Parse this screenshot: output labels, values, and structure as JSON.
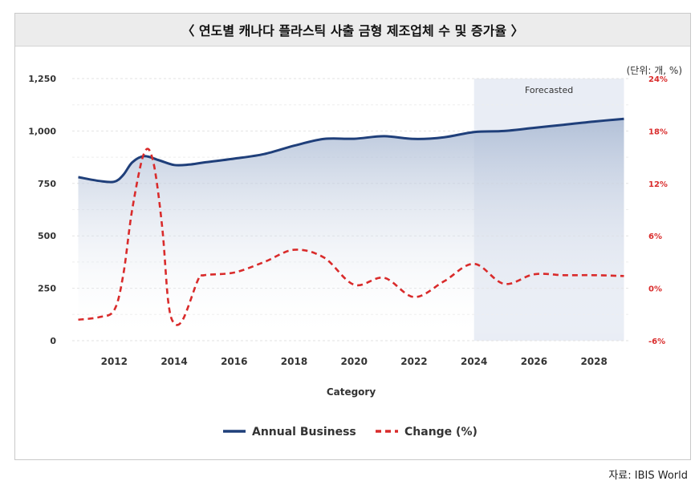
{
  "title": "〈 연도별 캐나다 플라스틱 사출 금형 제조업체 수 및 증가율 〉",
  "unit_note": "(단위: 개, %)",
  "source": "자료: IBIS World",
  "chart_data": {
    "type": "line",
    "xlabel": "Category",
    "forecast_label": "Forecasted",
    "forecast_range": [
      2024,
      2029
    ],
    "x_ticks": [
      2012,
      2014,
      2016,
      2018,
      2020,
      2022,
      2024,
      2026,
      2028
    ],
    "xlim": [
      2010.6,
      2029.2
    ],
    "y_left": {
      "lim": [
        0,
        1250
      ],
      "ticks": [
        0,
        250,
        500,
        750,
        1000,
        1250
      ],
      "tick_labels": [
        "0",
        "250",
        "500",
        "750",
        "1,000",
        "1,250"
      ]
    },
    "y_right": {
      "lim": [
        -6,
        24
      ],
      "ticks": [
        -6,
        0,
        6,
        12,
        18,
        24
      ],
      "tick_labels": [
        "-6%",
        "0%",
        "6%",
        "12%",
        "18%",
        "24%"
      ]
    },
    "grid": true,
    "legend_position": "bottom",
    "series": [
      {
        "name": "Annual Business",
        "axis": "left",
        "color": "#1f3f7a",
        "style": "solid-area",
        "points": [
          [
            2010.8,
            780
          ],
          [
            2011.5,
            762
          ],
          [
            2012.0,
            758
          ],
          [
            2012.3,
            790
          ],
          [
            2012.6,
            850
          ],
          [
            2013.0,
            880
          ],
          [
            2013.5,
            860
          ],
          [
            2014.0,
            838
          ],
          [
            2014.5,
            840
          ],
          [
            2015.0,
            850
          ],
          [
            2016.0,
            868
          ],
          [
            2017.0,
            890
          ],
          [
            2018.0,
            930
          ],
          [
            2019.0,
            962
          ],
          [
            2020.0,
            963
          ],
          [
            2021.0,
            975
          ],
          [
            2022.0,
            962
          ],
          [
            2023.0,
            970
          ],
          [
            2024.0,
            995
          ],
          [
            2025.0,
            1000
          ],
          [
            2026.0,
            1015
          ],
          [
            2027.0,
            1030
          ],
          [
            2028.0,
            1045
          ],
          [
            2029.0,
            1058
          ]
        ]
      },
      {
        "name": "Change (%)",
        "axis": "right",
        "color": "#d92b2b",
        "style": "dashed",
        "points": [
          [
            2010.8,
            -3.6
          ],
          [
            2011.5,
            -3.3
          ],
          [
            2012.0,
            -2.5
          ],
          [
            2012.3,
            1.5
          ],
          [
            2012.6,
            9.0
          ],
          [
            2013.0,
            15.5
          ],
          [
            2013.3,
            14.5
          ],
          [
            2013.6,
            7.0
          ],
          [
            2013.8,
            -1.5
          ],
          [
            2014.0,
            -4.0
          ],
          [
            2014.3,
            -3.5
          ],
          [
            2014.8,
            1.0
          ],
          [
            2015.0,
            1.5
          ],
          [
            2016.0,
            1.8
          ],
          [
            2017.0,
            3.0
          ],
          [
            2018.0,
            4.4
          ],
          [
            2019.0,
            3.5
          ],
          [
            2020.0,
            0.4
          ],
          [
            2021.0,
            1.2
          ],
          [
            2022.0,
            -1.0
          ],
          [
            2023.0,
            0.8
          ],
          [
            2024.0,
            2.8
          ],
          [
            2025.0,
            0.5
          ],
          [
            2026.0,
            1.6
          ],
          [
            2027.0,
            1.5
          ],
          [
            2028.0,
            1.5
          ],
          [
            2029.0,
            1.4
          ]
        ]
      }
    ]
  }
}
